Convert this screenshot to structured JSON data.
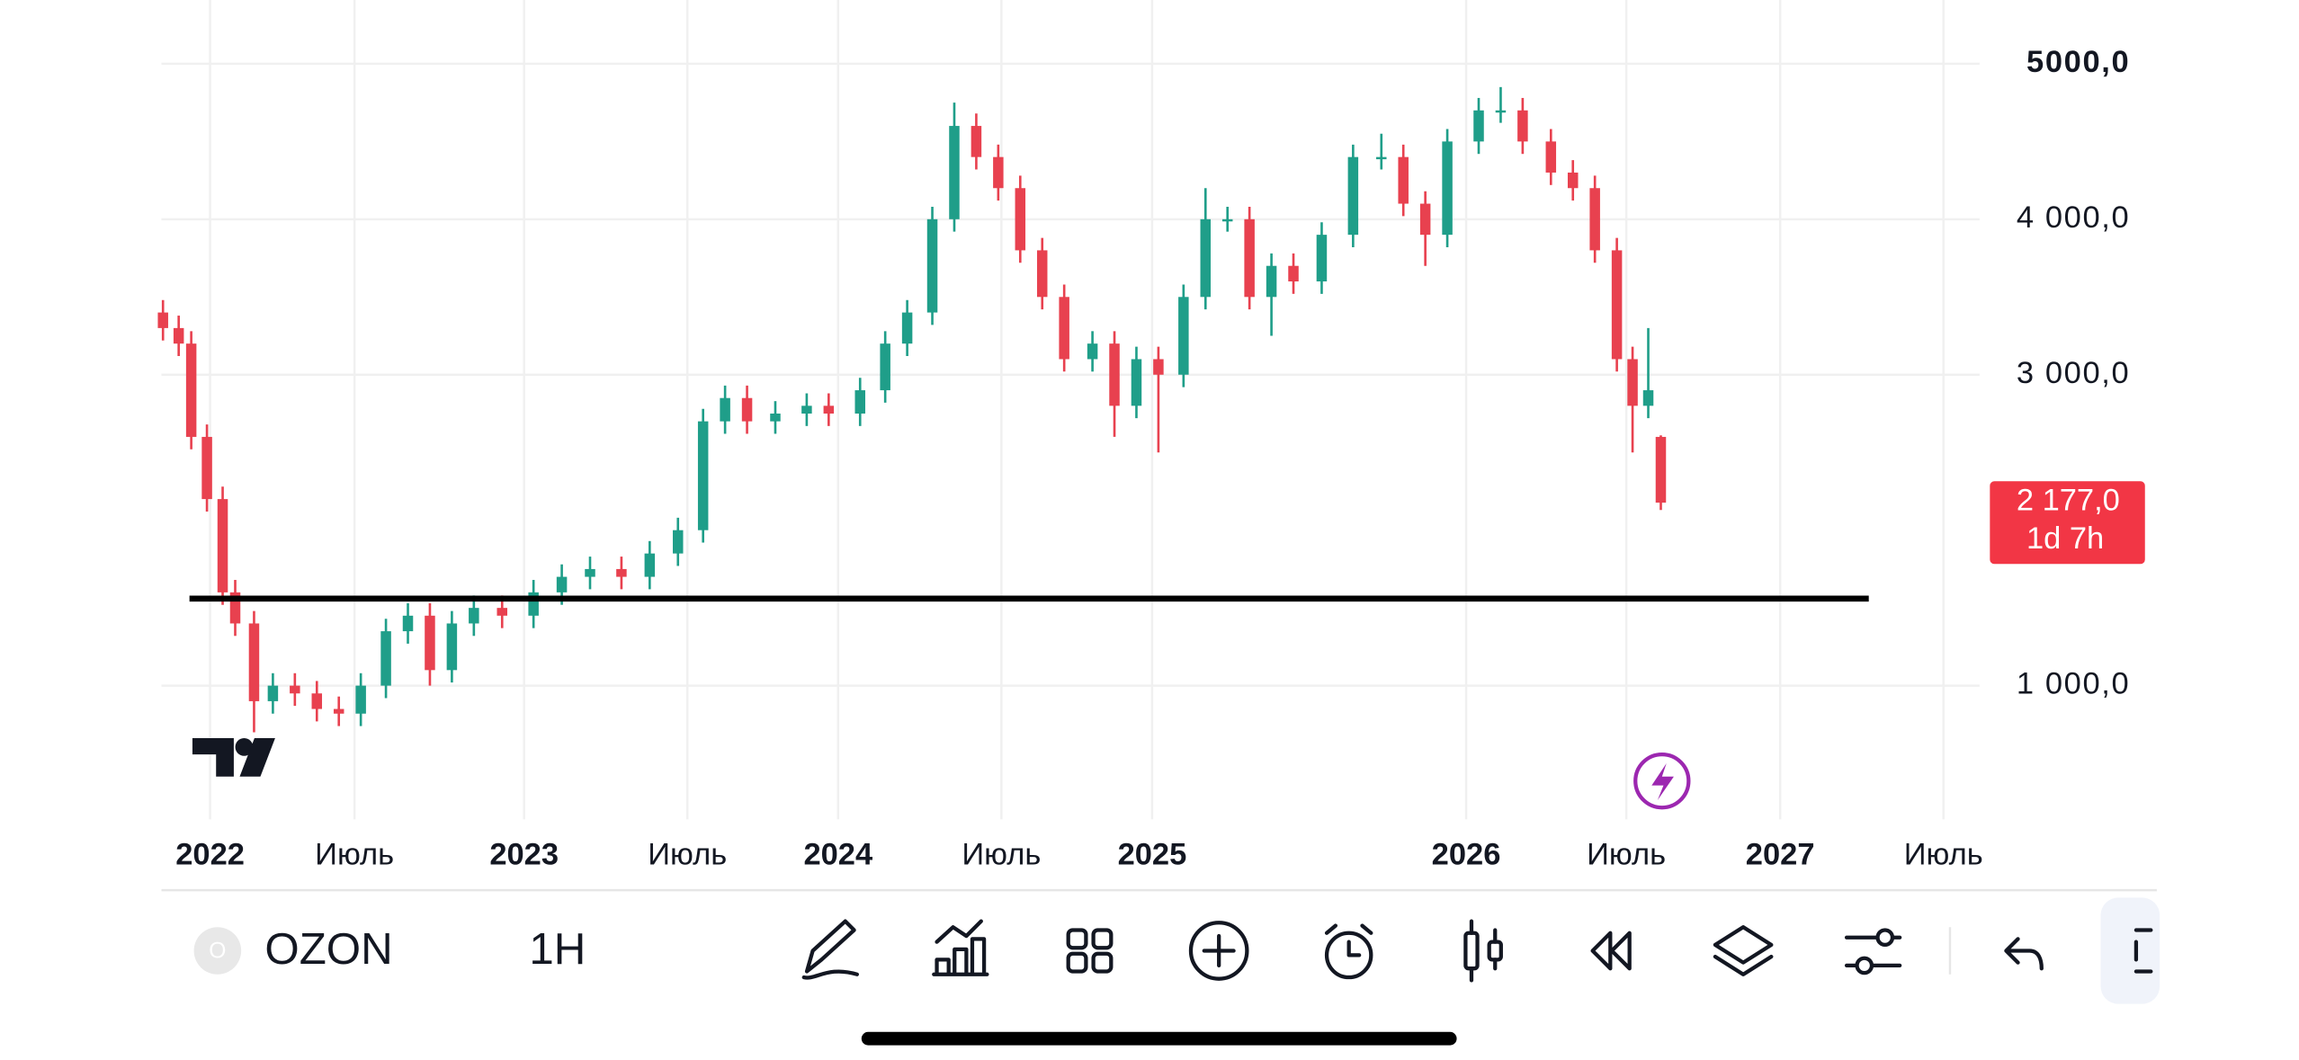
{
  "chart_data": {
    "type": "candlestick",
    "symbol_icon": "O",
    "symbol": "OZON",
    "interval": "1H",
    "last_price_label": "2 177,0",
    "countdown": "1d 7h",
    "up_color": "#1f9e89",
    "down_color": "#e8414f",
    "level": 1560,
    "x": [
      2021.85,
      2021.9,
      2021.94,
      2021.99,
      2022.04,
      2022.08,
      2022.14,
      2022.2,
      2022.27,
      2022.34,
      2022.41,
      2022.48,
      2022.56,
      2022.63,
      2022.7,
      2022.77,
      2022.84,
      2022.93,
      2023.03,
      2023.12,
      2023.21,
      2023.31,
      2023.4,
      2023.49,
      2023.57,
      2023.64,
      2023.71,
      2023.8,
      2023.9,
      2023.97,
      2024.07,
      2024.15,
      2024.22,
      2024.3,
      2024.37,
      2024.44,
      2024.51,
      2024.58,
      2024.65,
      2024.72,
      2024.81,
      2024.88,
      2024.95,
      2025.02,
      2025.1,
      2025.17,
      2025.24,
      2025.31,
      2025.38,
      2025.45,
      2025.54,
      2025.64,
      2025.73,
      2025.8,
      2025.87,
      2025.94,
      2026.04,
      2026.11,
      2026.18,
      2026.27,
      2026.34,
      2026.41,
      2026.48,
      2026.53,
      2026.58,
      2026.62
    ],
    "open": [
      3400,
      3300,
      3200,
      2600,
      2200,
      1600,
      1400,
      900,
      1000,
      950,
      850,
      820,
      1000,
      1350,
      1450,
      1100,
      1400,
      1500,
      1450,
      1600,
      1700,
      1750,
      1700,
      1850,
      2000,
      2700,
      2850,
      2700,
      2750,
      2800,
      2750,
      2900,
      3200,
      3400,
      4000,
      4600,
      4400,
      4200,
      3800,
      3500,
      3100,
      3200,
      2800,
      3100,
      3000,
      3500,
      4000,
      4000,
      3500,
      3700,
      3600,
      3900,
      4400,
      4400,
      4100,
      3900,
      4500,
      4700,
      4700,
      4500,
      4300,
      4200,
      3800,
      3100,
      2800,
      2600
    ],
    "high": [
      3480,
      3380,
      3280,
      2680,
      2280,
      1680,
      1480,
      1080,
      1080,
      1030,
      930,
      1080,
      1430,
      1530,
      1530,
      1480,
      1580,
      1580,
      1680,
      1780,
      1830,
      1830,
      1930,
      2080,
      2780,
      2930,
      2930,
      2830,
      2880,
      2880,
      2980,
      3280,
      3480,
      4080,
      4750,
      4680,
      4480,
      4280,
      3880,
      3580,
      3280,
      3280,
      3180,
      3180,
      3580,
      4200,
      4080,
      4080,
      3780,
      3780,
      3980,
      4480,
      4550,
      4480,
      4180,
      4580,
      4780,
      4850,
      4780,
      4580,
      4380,
      4280,
      3880,
      3180,
      3300,
      2610
    ],
    "low": [
      3220,
      3120,
      2520,
      2120,
      1520,
      1320,
      700,
      820,
      870,
      770,
      740,
      740,
      920,
      1270,
      1000,
      1020,
      1320,
      1370,
      1370,
      1520,
      1620,
      1620,
      1620,
      1770,
      1920,
      2620,
      2620,
      2620,
      2670,
      2670,
      2670,
      2820,
      3120,
      3320,
      3920,
      4320,
      4120,
      3720,
      3420,
      3020,
      3020,
      2600,
      2720,
      2500,
      2920,
      3420,
      3920,
      3420,
      3250,
      3520,
      3520,
      3820,
      4320,
      4020,
      3700,
      3820,
      4420,
      4620,
      4420,
      4220,
      4120,
      3720,
      3020,
      2500,
      2720,
      2130
    ],
    "close": [
      3300,
      3200,
      2600,
      2200,
      1600,
      1400,
      900,
      1000,
      950,
      850,
      820,
      1000,
      1350,
      1450,
      1100,
      1400,
      1500,
      1450,
      1600,
      1700,
      1750,
      1700,
      1850,
      2000,
      2700,
      2850,
      2700,
      2750,
      2800,
      2750,
      2900,
      3200,
      3400,
      4000,
      4600,
      4400,
      4200,
      3800,
      3500,
      3100,
      3200,
      2800,
      3100,
      3000,
      3500,
      4000,
      4000,
      3500,
      3700,
      3600,
      3900,
      4400,
      4400,
      4100,
      3900,
      4500,
      4700,
      4700,
      4500,
      4300,
      4200,
      3800,
      3100,
      2800,
      2900,
      2177
    ],
    "xlim": [
      2021.845,
      2027.635
    ],
    "xticks": [
      2022,
      {
        "value": 2022.46,
        "label": "Июль"
      },
      2023,
      {
        "value": 2023.52,
        "label": "Июль"
      },
      2024,
      {
        "value": 2024.52,
        "label": "Июль"
      },
      2025,
      2026,
      {
        "value": 2026.51,
        "label": "Июль"
      },
      2027,
      {
        "value": 2027.52,
        "label": "Июль"
      }
    ],
    "ylim": [
      140,
      5410
    ],
    "yticks": [
      {
        "value": 1000,
        "label": "1 000,0"
      },
      {
        "value": 3000,
        "label": "3 000,0"
      },
      {
        "value": 4000,
        "label": "4 000,0"
      },
      {
        "value": 5000,
        "label": "5000,0"
      }
    ],
    "grid": true
  }
}
